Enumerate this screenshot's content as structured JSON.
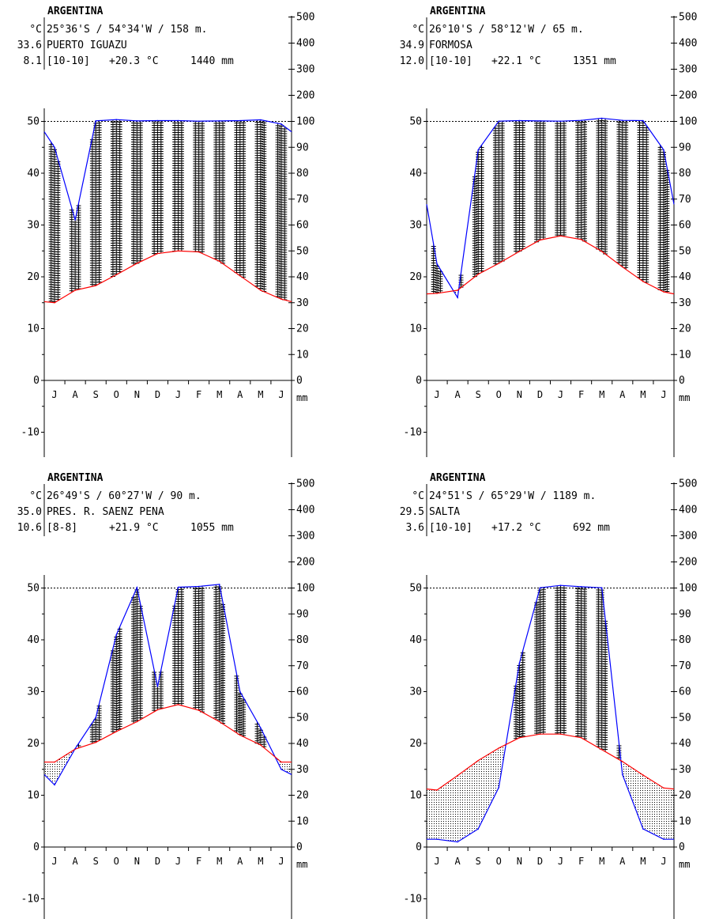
{
  "colors": {
    "temperature": "#ff0000",
    "precipitation": "#0000ff",
    "axis": "#000000",
    "humid_hatch": "#000000",
    "dry_stipple": "#000000"
  },
  "chart_data": [
    {
      "type": "line",
      "country": "ARGENTINA",
      "coords": "25°36'S / 54°34'W / 158 m.",
      "station": "PUERTO IGUAZU",
      "years": "[10-10]",
      "mean_temp": "+20.3 °C",
      "annual_precip": "1440 mm",
      "temp_unit": "°C",
      "abs_max": "33.6",
      "abs_min": "8.1",
      "precip_unit": "mm",
      "months": [
        "J",
        "A",
        "S",
        "O",
        "N",
        "D",
        "J",
        "F",
        "M",
        "A",
        "M",
        "J"
      ],
      "temp_ticks": [
        "-10",
        "0",
        "10",
        "20",
        "30",
        "40",
        "50"
      ],
      "precip_ticks": [
        "0",
        "10",
        "20",
        "30",
        "40",
        "50",
        "60",
        "70",
        "80",
        "90",
        "100",
        "200",
        "300",
        "400",
        "500"
      ],
      "temperature": [
        15.0,
        17.4,
        18.3,
        20.4,
        22.6,
        24.5,
        25.0,
        24.8,
        23.0,
        20.2,
        17.4,
        15.7
      ],
      "precipitation": [
        90,
        62,
        102,
        107,
        102,
        103,
        103,
        101,
        102,
        103,
        106,
        99
      ],
      "boundary": {
        "temperature": [
          15.2,
          15.2
        ],
        "precipitation": [
          96,
          96
        ]
      }
    },
    {
      "type": "line",
      "country": "ARGENTINA",
      "coords": "26°10'S / 58°12'W / 65 m.",
      "station": "FORMOSA",
      "years": "[10-10]",
      "mean_temp": "+22.1 °C",
      "annual_precip": "1351 mm",
      "temp_unit": "°C",
      "abs_max": "34.9",
      "abs_min": "12.0",
      "precip_unit": "mm",
      "months": [
        "J",
        "A",
        "S",
        "O",
        "N",
        "D",
        "J",
        "F",
        "M",
        "A",
        "M",
        "J"
      ],
      "temp_ticks": [
        "-10",
        "0",
        "10",
        "20",
        "30",
        "40",
        "50"
      ],
      "precip_ticks": [
        "0",
        "10",
        "20",
        "30",
        "40",
        "50",
        "60",
        "70",
        "80",
        "90",
        "100",
        "200",
        "300",
        "400",
        "500"
      ],
      "temperature": [
        16.8,
        17.4,
        20.5,
        22.6,
        24.9,
        27.1,
        27.9,
        27.2,
        24.9,
        21.9,
        19.1,
        17.1
      ],
      "precipitation": [
        45,
        32,
        89,
        101,
        103,
        102,
        101,
        104,
        112,
        104,
        103,
        89
      ],
      "boundary": {
        "temperature": [
          16.7,
          16.7
        ],
        "precipitation": [
          68,
          68
        ]
      }
    },
    {
      "type": "line",
      "country": "ARGENTINA",
      "coords": "26°49'S / 60°27'W / 90 m.",
      "station": "PRES. R. SAENZ PENA",
      "years": "[8-8]",
      "mean_temp": "+21.9 °C",
      "annual_precip": "1055 mm",
      "temp_unit": "°C",
      "abs_max": "35.0",
      "abs_min": "10.6",
      "precip_unit": "mm",
      "months": [
        "J",
        "A",
        "S",
        "O",
        "N",
        "D",
        "J",
        "F",
        "M",
        "A",
        "M",
        "J"
      ],
      "temp_ticks": [
        "-10",
        "0",
        "10",
        "20",
        "30",
        "40",
        "50"
      ],
      "precip_ticks": [
        "0",
        "10",
        "20",
        "30",
        "40",
        "50",
        "60",
        "70",
        "80",
        "90",
        "100",
        "200",
        "300",
        "400",
        "500"
      ],
      "temperature": [
        16.4,
        18.9,
        20.2,
        22.3,
        24.2,
        26.5,
        27.5,
        26.4,
        24.2,
        21.6,
        19.7,
        16.4
      ],
      "precipitation": [
        24,
        38,
        50,
        82,
        102,
        62,
        103,
        106,
        114,
        60,
        46,
        30
      ],
      "boundary": {
        "temperature": [
          16.4,
          16.4
        ],
        "precipitation": [
          28,
          28
        ]
      }
    },
    {
      "type": "line",
      "country": "ARGENTINA",
      "coords": "24°51'S / 65°29'W / 1189 m.",
      "station": "SALTA",
      "years": "[10-10]",
      "mean_temp": "+17.2 °C",
      "annual_precip": "692 mm",
      "temp_unit": "°C",
      "abs_max": "29.5",
      "abs_min": "3.6",
      "precip_unit": "mm",
      "months": [
        "J",
        "A",
        "S",
        "O",
        "N",
        "D",
        "J",
        "F",
        "M",
        "A",
        "M",
        "J"
      ],
      "temp_ticks": [
        "-10",
        "0",
        "10",
        "20",
        "30",
        "40",
        "50"
      ],
      "precip_ticks": [
        "0",
        "10",
        "20",
        "30",
        "40",
        "50",
        "60",
        "70",
        "80",
        "90",
        "100",
        "200",
        "300",
        "400",
        "500"
      ],
      "temperature": [
        11.0,
        13.8,
        16.7,
        19.1,
        21.1,
        21.8,
        21.8,
        21.1,
        18.8,
        16.5,
        13.9,
        11.4
      ],
      "precipitation": [
        3,
        2,
        7,
        23,
        71,
        101,
        110,
        105,
        101,
        28,
        7,
        3
      ],
      "boundary": {
        "temperature": [
          11.2,
          11.2
        ],
        "precipitation": [
          3,
          3
        ]
      }
    }
  ]
}
